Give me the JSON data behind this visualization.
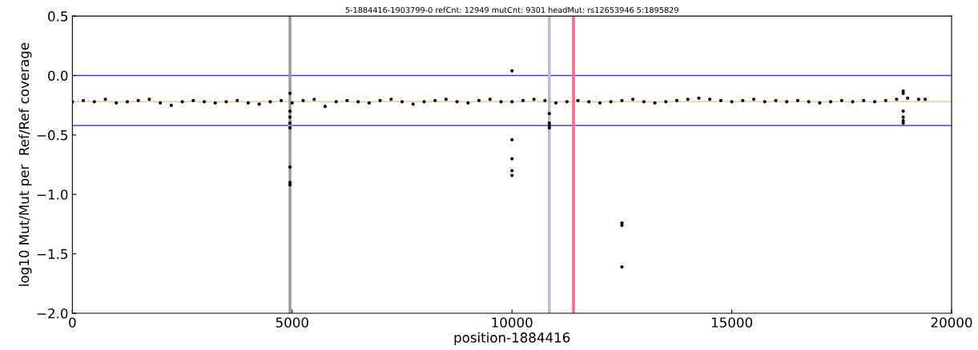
{
  "chart_data": {
    "type": "scatter",
    "title": "5-1884416-1903799-0 refCnt: 12949 mutCnt: 9301 headMut: rs12653946 5:1895829",
    "xlabel": "position-1884416",
    "ylabel": "log10 Mut/Mut per  Ref/Ref coverage",
    "series": [
      {
        "color": "#000000",
        "x": [
          0,
          250,
          500,
          750,
          1000,
          1250,
          1500,
          1750,
          2000,
          2250,
          2500,
          2750,
          3000,
          3250,
          3500,
          3750,
          4000,
          4250,
          4500,
          4750,
          5000,
          5250,
          5500,
          5750,
          6000,
          6250,
          6500,
          6750,
          7000,
          7250,
          7500,
          7750,
          8000,
          8250,
          8500,
          8750,
          9000,
          9250,
          9500,
          9750,
          10000,
          10250,
          10500,
          10750,
          11000,
          11250,
          11500,
          11750,
          12000,
          12250,
          12500,
          12750,
          13000,
          13250,
          13500,
          13750,
          14000,
          14250,
          14500,
          14750,
          15000,
          15250,
          15500,
          15750,
          16000,
          16250,
          16500,
          16750,
          17000,
          17250,
          17500,
          17750,
          18000,
          18250,
          18500,
          18750,
          19000,
          19250,
          19400,
          4950,
          4950,
          4950,
          4950,
          4950,
          4950,
          4950,
          4950,
          10000,
          10000,
          10000,
          10000,
          10000,
          10850,
          10850,
          10850,
          10850,
          12500,
          12500,
          12500,
          18900,
          18900,
          18900,
          18900,
          18900,
          18900
        ],
        "values": [
          -0.22,
          -0.21,
          -0.22,
          -0.2,
          -0.23,
          -0.22,
          -0.21,
          -0.2,
          -0.23,
          -0.25,
          -0.22,
          -0.21,
          -0.22,
          -0.23,
          -0.22,
          -0.21,
          -0.23,
          -0.24,
          -0.22,
          -0.21,
          -0.23,
          -0.21,
          -0.2,
          -0.26,
          -0.22,
          -0.21,
          -0.22,
          -0.23,
          -0.21,
          -0.2,
          -0.22,
          -0.24,
          -0.22,
          -0.21,
          -0.2,
          -0.22,
          -0.23,
          -0.21,
          -0.2,
          -0.22,
          -0.22,
          -0.21,
          -0.2,
          -0.21,
          -0.23,
          -0.22,
          -0.21,
          -0.22,
          -0.23,
          -0.22,
          -0.21,
          -0.2,
          -0.22,
          -0.23,
          -0.22,
          -0.21,
          -0.2,
          -0.19,
          -0.2,
          -0.21,
          -0.22,
          -0.21,
          -0.2,
          -0.22,
          -0.21,
          -0.22,
          -0.21,
          -0.22,
          -0.23,
          -0.22,
          -0.21,
          -0.22,
          -0.21,
          -0.22,
          -0.21,
          -0.2,
          -0.19,
          -0.2,
          -0.2,
          -0.15,
          -0.3,
          -0.35,
          -0.4,
          -0.44,
          -0.77,
          -0.9,
          -0.92,
          0.04,
          -0.54,
          -0.7,
          -0.8,
          -0.84,
          -0.32,
          -0.4,
          -0.42,
          -0.44,
          -1.24,
          -1.26,
          -1.61,
          -0.13,
          -0.15,
          -0.3,
          -0.35,
          -0.38,
          -0.4
        ]
      }
    ],
    "marker": "circle",
    "xlim": [
      0,
      20000
    ],
    "xticks": [
      0,
      5000,
      10000,
      15000,
      20000
    ],
    "ylim": [
      -2.0,
      0.5
    ],
    "yticks": [
      {
        "value": 0.5,
        "label": "0.5"
      },
      {
        "value": 0.0,
        "label": "0.0"
      },
      {
        "value": -0.5,
        "label": "−0.5"
      },
      {
        "value": -1.0,
        "label": "−1.0"
      },
      {
        "value": -1.5,
        "label": "−1.5"
      },
      {
        "value": -2.0,
        "label": "−2.0"
      }
    ],
    "ref_lines": [
      {
        "axis": "y",
        "value": 0,
        "color": "#4444dd"
      },
      {
        "axis": "y",
        "value": -0.42,
        "color": "#4444dd"
      },
      {
        "axis": "y",
        "value": -0.22,
        "color": "#f2c89a"
      },
      {
        "axis": "x",
        "value": 4950,
        "color": "#999999"
      },
      {
        "axis": "x",
        "value": 10850,
        "color": "#bbbbcc"
      },
      {
        "axis": "x",
        "value": 11400,
        "color": "#ff6680"
      }
    ],
    "grid": false
  }
}
